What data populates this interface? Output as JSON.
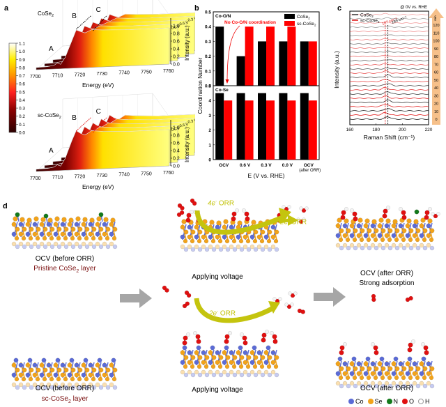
{
  "panels": {
    "a": "a",
    "b": "b",
    "c": "c",
    "d": "d"
  },
  "chart_data": [
    {
      "id": "a-top",
      "type": "area",
      "title": "CoSe2",
      "title_main": "CoSe",
      "title_sub": "2",
      "xlabel": "Energy (eV)",
      "zlabel": "Intensity (a.u.)",
      "xlim": [
        7700,
        7760
      ],
      "x_ticks": [
        "7700",
        "7710",
        "7720",
        "7730",
        "7740",
        "7750",
        "7760"
      ],
      "z_ticks": [
        "0.0",
        "0.2",
        "0.4",
        "0.6",
        "0.8",
        "1.0"
      ],
      "peak_labels": [
        "A",
        "B",
        "C"
      ],
      "series": [
        {
          "name": "OCV"
        },
        {
          "name": "0.6 V"
        },
        {
          "name": "0.3 V"
        },
        {
          "name": "0.0 V"
        },
        {
          "name": "OCV (after ORR)"
        }
      ],
      "profile": {
        "x": [
          7700,
          7705,
          7708,
          7709.5,
          7711,
          7713,
          7716,
          7718,
          7720,
          7722,
          7725,
          7730,
          7740,
          7750,
          7760
        ],
        "y": [
          0.06,
          0.07,
          0.1,
          0.16,
          0.12,
          0.3,
          0.75,
          1.05,
          1.0,
          0.96,
          1.04,
          1.02,
          1.0,
          1.0,
          1.0
        ]
      },
      "guide_color": "#000000"
    },
    {
      "id": "a-bottom",
      "type": "area",
      "title": "sc-CoSe2",
      "title_main": "sc-CoSe",
      "title_sub": "2",
      "xlabel": "Energy (eV)",
      "zlabel": "Intensity (a.u.)",
      "xlim": [
        7700,
        7760
      ],
      "x_ticks": [
        "7700",
        "7710",
        "7720",
        "7730",
        "7740",
        "7750",
        "7760"
      ],
      "z_ticks": [
        "0.0",
        "0.2",
        "0.4",
        "0.6",
        "0.8",
        "1.0"
      ],
      "peak_labels": [
        "A",
        "B",
        "C"
      ],
      "series": [
        {
          "name": "OCV"
        },
        {
          "name": "0.6 V"
        },
        {
          "name": "0.3 V"
        },
        {
          "name": "0.0 V"
        },
        {
          "name": "OCV (after ORR)"
        }
      ],
      "profile": {
        "x": [
          7700,
          7705,
          7708,
          7709.5,
          7711,
          7713,
          7716,
          7718,
          7720,
          7722,
          7725,
          7730,
          7740,
          7750,
          7760
        ],
        "y": [
          0.06,
          0.07,
          0.1,
          0.16,
          0.12,
          0.32,
          0.8,
          1.08,
          1.0,
          0.95,
          1.06,
          1.03,
          1.0,
          1.0,
          1.0
        ]
      },
      "guide_color": "#e01010"
    },
    {
      "id": "a-colorbar",
      "type": "heatmap",
      "ticks": [
        "0.0",
        "0.1",
        "0.2",
        "0.3",
        "0.4",
        "0.5",
        "0.6",
        "0.7",
        "0.8",
        "0.9",
        "1.0",
        "1.1"
      ],
      "range": [
        0.0,
        1.1
      ]
    },
    {
      "id": "b",
      "type": "bar",
      "xlabel": "E (V vs. RHE)",
      "ylabel": "Coordination Number",
      "categories": [
        "OCV",
        "0.6 V",
        "0.3 V",
        "0.0 V",
        "OCV"
      ],
      "category_sub": [
        "",
        "",
        "",
        "",
        "(after ORR)"
      ],
      "legend": {
        "placement": "top-right",
        "entries": [
          "CoSe2",
          "sc-CoSe2"
        ]
      },
      "legend_main": [
        "CoSe",
        "sc-CoSe"
      ],
      "colors": [
        "#000000",
        "#ff0000"
      ],
      "subplots": [
        {
          "label": "Co-O/N",
          "ylim": [
            0,
            0.5
          ],
          "y_ticks": [
            "0.0",
            "0.1",
            "0.2",
            "0.3",
            "0.4",
            "0.5"
          ],
          "series": [
            {
              "name": "CoSe2",
              "values": [
                0.4,
                0.2,
                0.3,
                0.3,
                0.3
              ]
            },
            {
              "name": "sc-CoSe2",
              "values": [
                0.0,
                0.4,
                0.4,
                0.4,
                0.3
              ]
            }
          ],
          "annotation": "No Co-O/N coordination"
        },
        {
          "label": "Co-Se",
          "ylim": [
            0,
            5
          ],
          "y_ticks": [
            "0",
            "1",
            "2",
            "3",
            "4",
            "5"
          ],
          "series": [
            {
              "name": "CoSe2",
              "values": [
                4.5,
                4.5,
                4.5,
                4.5,
                4.5
              ]
            },
            {
              "name": "sc-CoSe2",
              "values": [
                4.0,
                4.0,
                4.0,
                4.0,
                4.0
              ]
            }
          ]
        }
      ]
    },
    {
      "id": "c",
      "type": "line",
      "xlabel": "Raman Shift (cm⁻¹)",
      "ylabel": "Intensity (a.u.)",
      "xlim": [
        160,
        220
      ],
      "x_ticks": [
        "160",
        "180",
        "200",
        "220"
      ],
      "condition": "@ 0V vs. RHE",
      "legend": {
        "placement": "top-left",
        "entries": [
          "CoSe2",
          "sc-CoSe2"
        ]
      },
      "legend_main": [
        "CoSe",
        "sc-CoSe"
      ],
      "peak_markers": [
        {
          "label": "187 cm⁻¹",
          "value": 187,
          "color": "#e01010"
        },
        {
          "label": "189 cm⁻¹",
          "value": 189,
          "color": "#000000"
        }
      ],
      "time_axis": {
        "unit": "min",
        "ticks": [
          "0",
          "10",
          "20",
          "30",
          "40",
          "50",
          "60",
          "70",
          "80",
          "90",
          "100",
          "110",
          "120"
        ]
      },
      "series": [
        {
          "name": "CoSe2",
          "peak": 189,
          "times": [
            0,
            10,
            20,
            30,
            40,
            50,
            60,
            70,
            80,
            90,
            100,
            110,
            120
          ]
        },
        {
          "name": "sc-CoSe2",
          "peak": 187,
          "times": [
            0,
            10,
            20,
            30,
            40,
            50,
            60,
            70,
            80,
            90,
            100,
            110,
            120
          ]
        }
      ]
    }
  ],
  "panel_d": {
    "top_row": {
      "before_caption": "OCV (before ORR)",
      "before_subcaption": "Pristine CoSe",
      "before_sub_2": "2",
      "before_sub_tail": " layer",
      "middle_caption": "Applying voltage",
      "after_caption": "OCV (after ORR)",
      "after_subcaption": "Strong adsorption",
      "arrow_4e": "4e",
      "arrow_4e_tail": " ORR",
      "arrow_2e": "2e",
      "arrow_2e_tail": " ORR",
      "superscript_minus": "-"
    },
    "bottom_row": {
      "before_caption": "OCV (before ORR)",
      "before_subcaption": "sc-CoSe",
      "before_sub_2": "2",
      "before_sub_tail": " layer",
      "middle_caption": "Applying voltage",
      "after_caption": "OCV (after ORR)",
      "arrow_2e": "2e",
      "arrow_2e_tail": " ORR",
      "superscript_minus": "-"
    },
    "legend": [
      {
        "label": "Co",
        "color": "#5b6bd6"
      },
      {
        "label": "Se",
        "color": "#f2a31a"
      },
      {
        "label": "N",
        "color": "#137a1b"
      },
      {
        "label": "O",
        "color": "#e01010"
      },
      {
        "label": "H",
        "color": "#ffffff"
      }
    ],
    "colors": {
      "co": "#5b6bd6",
      "se": "#f2a31a",
      "n": "#137a1b",
      "o": "#e01010",
      "h": "#f4f4f4",
      "orr_arrow": "#c4c40e",
      "process_arrow": "#a6a6a6",
      "caption_red": "#7a1010"
    }
  }
}
